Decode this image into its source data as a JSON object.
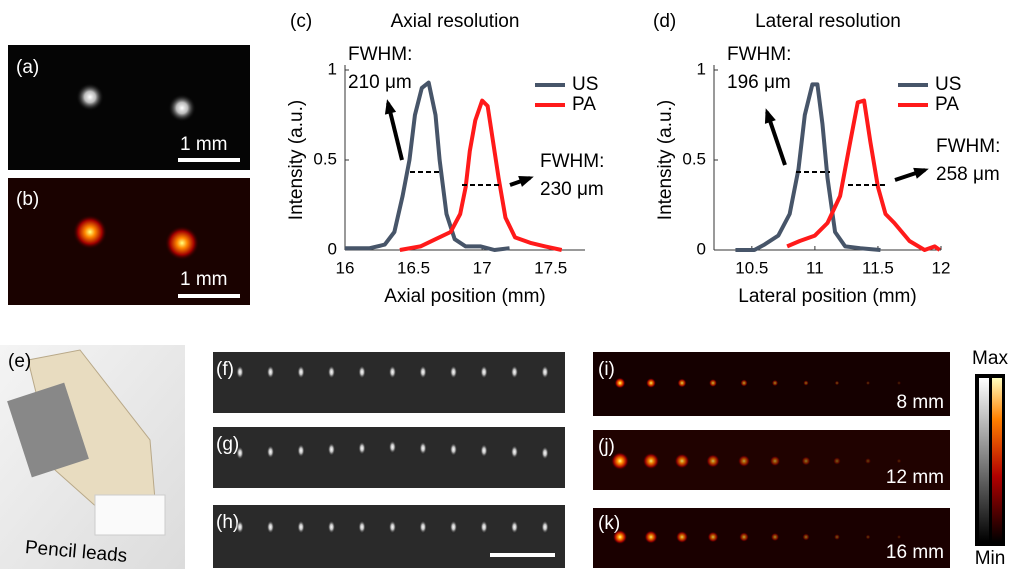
{
  "chart_data": [
    {
      "type": "line",
      "panel_label": "(c)",
      "title": "Axial resolution",
      "x_label": "Axial position (mm)",
      "y_label": "Intensity (a.u.)",
      "xlim": [
        16,
        17.75
      ],
      "xticks": [
        16,
        16.5,
        17,
        17.5
      ],
      "ylim": [
        0,
        1
      ],
      "yticks": [
        0,
        0.5,
        1
      ],
      "legend": "upper right",
      "annotations": [
        "FWHM:",
        "210 μm",
        "FWHM:",
        "230 μm"
      ],
      "series": [
        {
          "name": "US",
          "color": "#475569",
          "x": [
            16.0,
            16.18,
            16.29,
            16.36,
            16.42,
            16.47,
            16.51,
            16.56,
            16.61,
            16.66,
            16.69,
            16.74,
            16.8,
            16.88,
            16.99,
            17.09,
            17.2
          ],
          "values": [
            0.01,
            0.01,
            0.03,
            0.1,
            0.3,
            0.5,
            0.75,
            0.9,
            0.93,
            0.75,
            0.5,
            0.2,
            0.06,
            0.02,
            0.02,
            0.0,
            0.01
          ]
        },
        {
          "name": "PA",
          "color": "#ff1a1a",
          "x": [
            16.4,
            16.55,
            16.66,
            16.77,
            16.84,
            16.88,
            16.91,
            16.95,
            17.0,
            17.04,
            17.07,
            17.12,
            17.17,
            17.24,
            17.35,
            17.46,
            17.58
          ],
          "values": [
            0.0,
            0.02,
            0.06,
            0.1,
            0.2,
            0.35,
            0.55,
            0.72,
            0.83,
            0.8,
            0.65,
            0.4,
            0.18,
            0.07,
            0.04,
            0.02,
            0.0
          ]
        }
      ]
    },
    {
      "type": "line",
      "panel_label": "(d)",
      "title": "Lateral resolution",
      "x_label": "Lateral position (mm)",
      "y_label": "Intensity (a.u.)",
      "xlim": [
        10.2,
        12
      ],
      "xticks": [
        10.5,
        11,
        11.5,
        12
      ],
      "ylim": [
        0,
        1
      ],
      "yticks": [
        0,
        0.5,
        1
      ],
      "legend": "upper right",
      "annotations": [
        "FWHM:",
        "196 μm",
        "FWHM:",
        "258 μm"
      ],
      "series": [
        {
          "name": "US",
          "color": "#475569",
          "x": [
            10.37,
            10.52,
            10.6,
            10.71,
            10.8,
            10.87,
            10.92,
            10.98,
            11.02,
            11.06,
            11.1,
            11.16,
            11.24,
            11.36,
            11.52
          ],
          "values": [
            0.0,
            0.0,
            0.03,
            0.08,
            0.2,
            0.45,
            0.75,
            0.92,
            0.92,
            0.7,
            0.4,
            0.1,
            0.02,
            0.01,
            0.0
          ]
        },
        {
          "name": "PA",
          "color": "#ff1a1a",
          "x": [
            10.78,
            10.88,
            11.0,
            11.1,
            11.2,
            11.28,
            11.34,
            11.39,
            11.44,
            11.5,
            11.56,
            11.63,
            11.75,
            11.87,
            11.95,
            11.99
          ],
          "values": [
            0.02,
            0.05,
            0.08,
            0.15,
            0.3,
            0.6,
            0.82,
            0.83,
            0.6,
            0.35,
            0.2,
            0.15,
            0.05,
            0.0,
            0.02,
            0.0
          ]
        }
      ]
    }
  ],
  "image_panels": [
    {
      "label": "(a)",
      "note": "1 mm"
    },
    {
      "label": "(b)",
      "note": "1 mm"
    },
    {
      "label": "(e)",
      "note": "Pencil leads"
    },
    {
      "label": "(f)"
    },
    {
      "label": "(g)"
    },
    {
      "label": "(h)"
    },
    {
      "label": "(i)",
      "note": "8 mm"
    },
    {
      "label": "(j)",
      "note": "12 mm"
    },
    {
      "label": "(k)",
      "note": "16 mm"
    }
  ],
  "colorbar": {
    "max": "Max",
    "min": "Min"
  }
}
